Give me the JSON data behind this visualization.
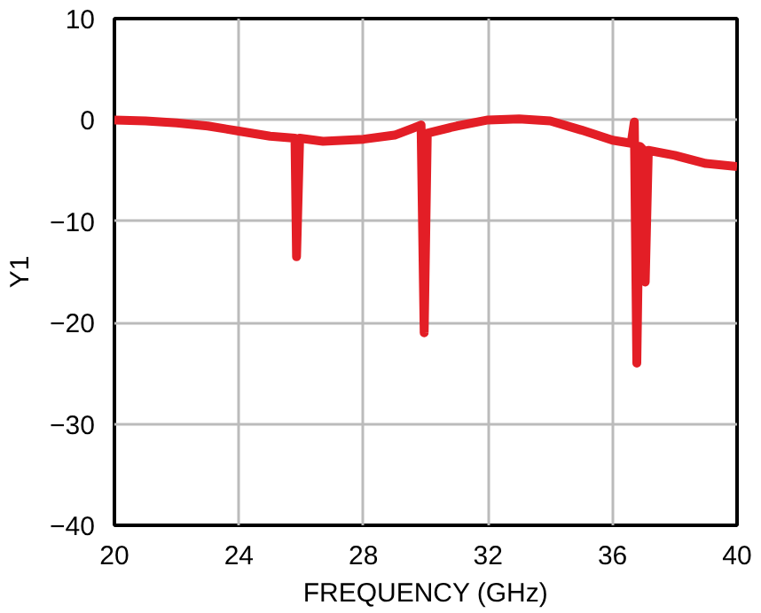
{
  "chart_data": {
    "type": "line",
    "xlabel": "FREQUENCY (GHz)",
    "ylabel": "Y1",
    "x": [
      20,
      21,
      22,
      23,
      24,
      25,
      25.8,
      25.85,
      25.95,
      26.7,
      28,
      29,
      29.6,
      29.85,
      29.95,
      30.05,
      31,
      32,
      33,
      34,
      35,
      36,
      36.6,
      36.7,
      36.78,
      36.88,
      37.0,
      37.05,
      37.15,
      38,
      39,
      40
    ],
    "series": [
      {
        "color": "#e31e26",
        "values": [
          0,
          -0.1,
          -0.3,
          -0.6,
          -1.1,
          -1.6,
          -1.8,
          -13.5,
          -1.8,
          -2.1,
          -1.9,
          -1.5,
          -0.8,
          -0.5,
          -21,
          -1.3,
          -0.6,
          0,
          0.1,
          -0.1,
          -1,
          -2,
          -2.3,
          -0.2,
          -24,
          -2.6,
          -3,
          -16,
          -3,
          -3.5,
          -4.3,
          -4.6
        ]
      }
    ],
    "xlim": [
      20,
      40
    ],
    "xticks": [
      20,
      24,
      28,
      32,
      36,
      40
    ],
    "ylim": [
      -40,
      10
    ],
    "yticks": [
      {
        "value": 10,
        "label": "10"
      },
      {
        "value": 0,
        "label": "0"
      },
      {
        "value": -10,
        "label": "−10"
      },
      {
        "value": -20,
        "label": "−20"
      },
      {
        "value": -30,
        "label": "−30"
      },
      {
        "value": -40,
        "label": "−40"
      }
    ],
    "grid": true,
    "marker": "none",
    "line_style": "solid"
  }
}
